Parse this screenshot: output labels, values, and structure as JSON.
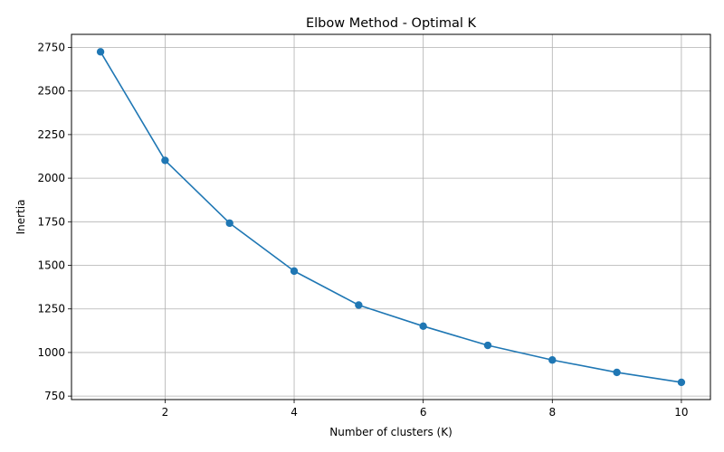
{
  "chart_data": {
    "type": "line",
    "title": "Elbow Method - Optimal K",
    "xlabel": "Number of clusters (K)",
    "ylabel": "Inertia",
    "x": [
      1,
      2,
      3,
      4,
      5,
      6,
      7,
      8,
      9,
      10
    ],
    "y": [
      2725,
      2102,
      1742,
      1467,
      1272,
      1151,
      1041,
      957,
      886,
      829
    ],
    "xlim": [
      0.55,
      10.45
    ],
    "ylim": [
      730,
      2825
    ],
    "xticks": [
      2,
      4,
      6,
      8,
      10
    ],
    "yticks": [
      750,
      1000,
      1250,
      1500,
      1750,
      2000,
      2250,
      2500,
      2750
    ],
    "grid": true,
    "marker": "circle",
    "color": "#1f77b4"
  }
}
